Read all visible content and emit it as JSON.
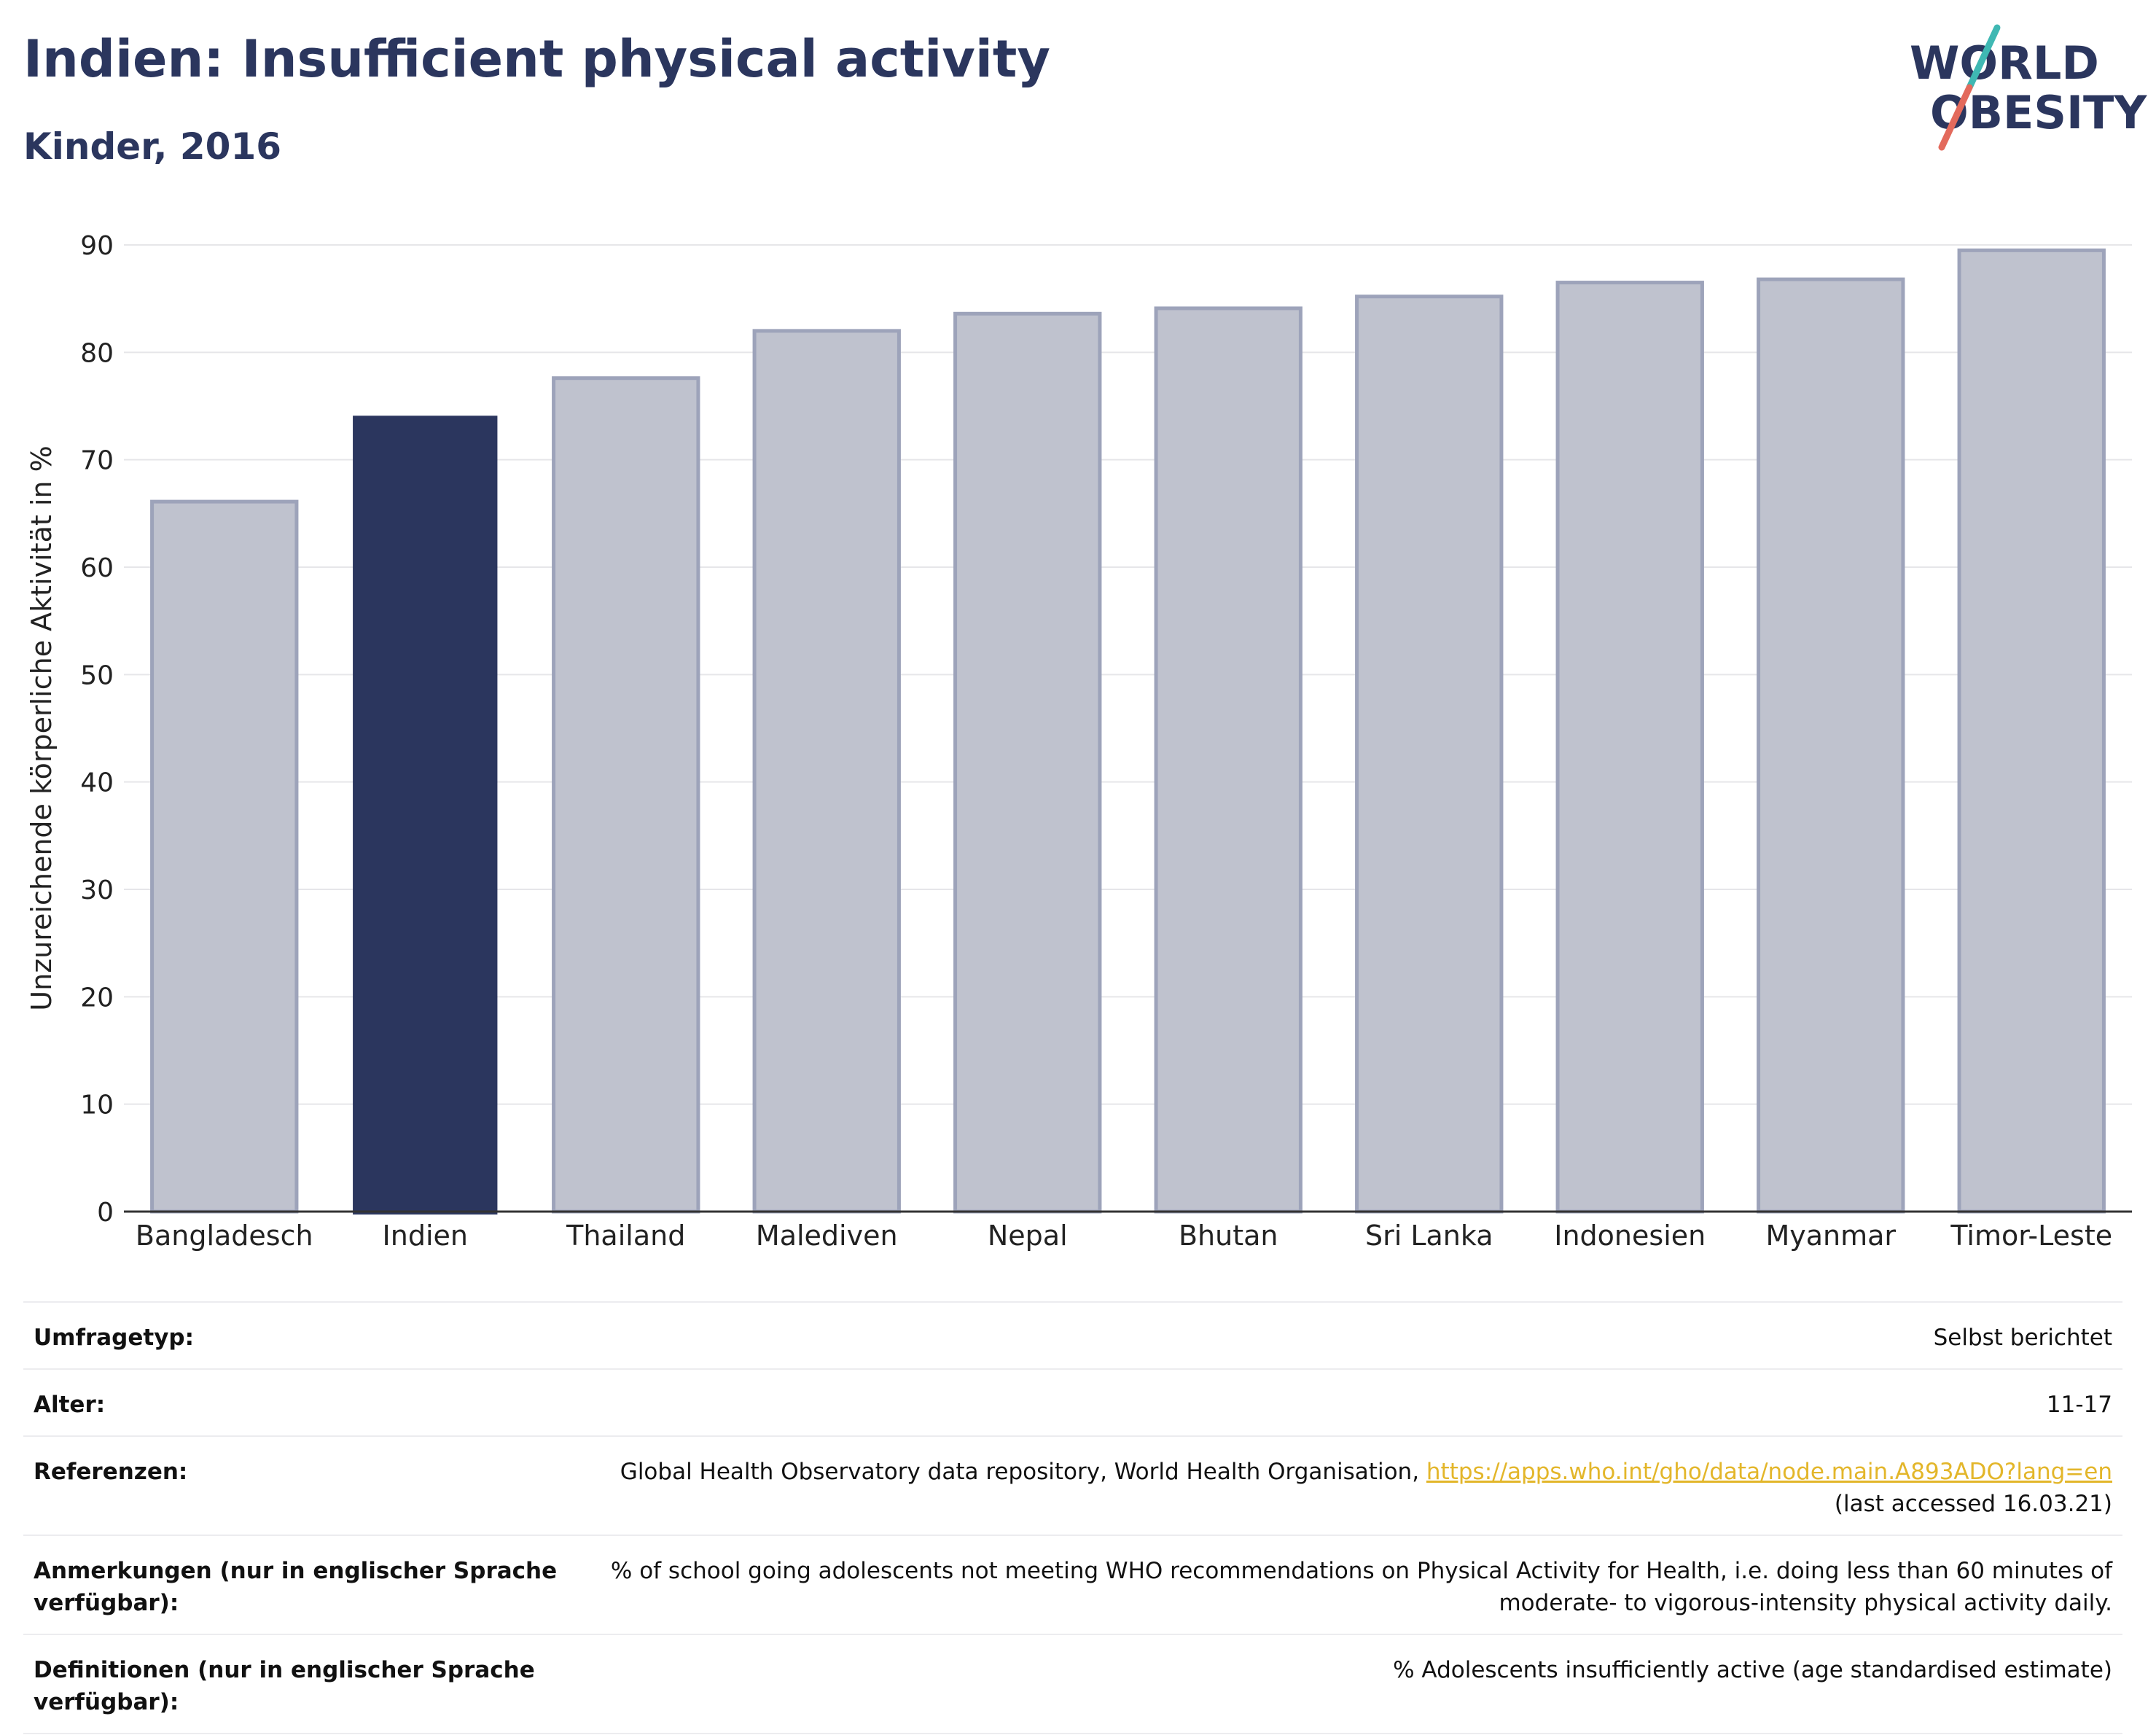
{
  "header": {
    "title": "Indien: Insufficient physical activity",
    "subtitle": "Kinder, 2016"
  },
  "logo": {
    "line1": "WORLD",
    "line2": "OBESITY",
    "slash_colors": [
      "#3fb8b3",
      "#e36a5c"
    ]
  },
  "colors": {
    "highlight": "#2b365e",
    "bar": "#bfc2ce",
    "bar_edge": "#9da3ba",
    "grid": "#e6e6e9",
    "link": "#e3b62a"
  },
  "chart_data": {
    "type": "bar",
    "categories": [
      "Bangladesch",
      "Indien",
      "Thailand",
      "Malediven",
      "Nepal",
      "Bhutan",
      "Sri Lanka",
      "Indonesien",
      "Myanmar",
      "Timor-Leste"
    ],
    "values": [
      66.1,
      74.1,
      77.6,
      82.0,
      83.6,
      84.1,
      85.2,
      86.5,
      86.8,
      89.5
    ],
    "highlight": "Indien",
    "ylabel": "Unzureichende körperliche Aktivität in %",
    "xlabel": "",
    "ylim": [
      0,
      90
    ],
    "yticks": [
      0,
      10,
      20,
      30,
      40,
      50,
      60,
      70,
      80,
      90
    ],
    "grid": true,
    "legend": "none"
  },
  "info": {
    "survey_label": "Umfragetyp:",
    "survey_value": "Selbst berichtet",
    "age_label": "Alter:",
    "age_value": "11-17",
    "ref_label": "Referenzen:",
    "ref_text": "Global Health Observatory data repository, World Health Organisation, ",
    "ref_link": "https://apps.who.int/gho/data/node.main.A893ADO?lang=en",
    "ref_accessed": "(last accessed 16.03.21)",
    "notes_label": "Anmerkungen (nur in englischer Sprache verfügbar):",
    "notes_value": "% of school going adolescents not meeting WHO recommendations on Physical Activity for Health, i.e. doing less than 60 minutes of moderate- to vigorous-intensity physical activity daily.",
    "def_label": "Definitionen (nur in englischer Sprache verfügbar):",
    "def_value": "% Adolescents insufficiently active (age standardised estimate)"
  }
}
